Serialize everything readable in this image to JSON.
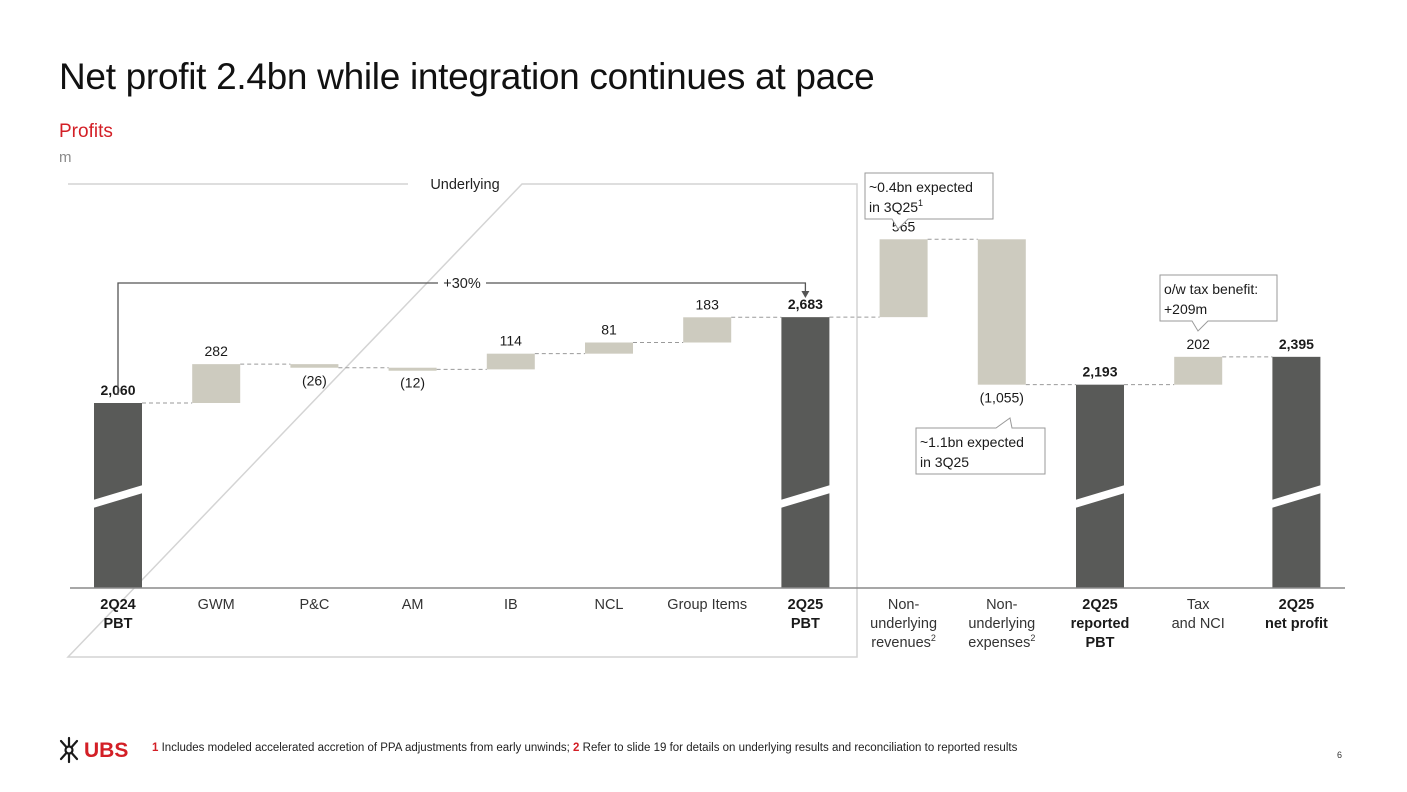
{
  "slide": {
    "title": "Net profit 2.4bn while integration continues at pace",
    "section": "Profits",
    "unit": "m",
    "page_number": "6"
  },
  "footnotes": {
    "n1": "1",
    "t1": " Includes modeled accelerated accretion of PPA adjustments from early unwinds; ",
    "n2": "2",
    "t2": " Refer to slide 19 for details on underlying results and reconciliation to reported results"
  },
  "logo": {
    "text": "UBS"
  },
  "colors": {
    "total": "#595a58",
    "delta": "#cdcbbf",
    "accent": "#d31f26",
    "connector": "#9a9a9a",
    "axis": "#8a8a8a"
  },
  "chart_data": {
    "type": "bar",
    "subtype": "waterfall",
    "title": "Profits",
    "ylabel": "m",
    "ylim": [
      0,
      3100
    ],
    "axis_break": true,
    "underlying_box_label": "Underlying",
    "growth_annotation": {
      "label": "+30%",
      "from": "2Q24 PBT",
      "to": "2Q25 PBT"
    },
    "bars": [
      {
        "category": [
          "2Q24",
          "PBT"
        ],
        "kind": "total",
        "value": 2060,
        "label": "2,060",
        "bold": true
      },
      {
        "category": [
          "GWM"
        ],
        "kind": "delta",
        "value": 282,
        "label": "282"
      },
      {
        "category": [
          "P&C"
        ],
        "kind": "delta",
        "value": -26,
        "label": "(26)"
      },
      {
        "category": [
          "AM"
        ],
        "kind": "delta",
        "value": -12,
        "label": "(12)"
      },
      {
        "category": [
          "IB"
        ],
        "kind": "delta",
        "value": 114,
        "label": "114"
      },
      {
        "category": [
          "NCL"
        ],
        "kind": "delta",
        "value": 81,
        "label": "81"
      },
      {
        "category": [
          "Group Items"
        ],
        "kind": "delta",
        "value": 183,
        "label": "183"
      },
      {
        "category": [
          "2Q25",
          "PBT"
        ],
        "kind": "total",
        "value": 2683,
        "label": "2,683",
        "bold": true
      },
      {
        "category": [
          "Non-",
          "underlying",
          "revenues"
        ],
        "sup": "2",
        "kind": "delta",
        "value": 565,
        "label": "565"
      },
      {
        "category": [
          "Non-",
          "underlying",
          "expenses"
        ],
        "sup": "2",
        "kind": "delta",
        "value": -1055,
        "label": "(1,055)"
      },
      {
        "category": [
          "2Q25",
          "reported",
          "PBT"
        ],
        "kind": "total",
        "value": 2193,
        "label": "2,193",
        "bold": true
      },
      {
        "category": [
          "Tax",
          "and NCI"
        ],
        "kind": "delta",
        "value": 202,
        "label": "202"
      },
      {
        "category": [
          "2Q25",
          "net profit"
        ],
        "kind": "total",
        "value": 2395,
        "label": "2,395",
        "bold": true
      }
    ],
    "callouts": [
      {
        "lines": [
          "~0.4bn expected",
          "in 3Q25"
        ],
        "sup": "1",
        "bar": "Non-underlying revenues"
      },
      {
        "lines": [
          "~1.1bn expected",
          "in 3Q25"
        ],
        "bar": "Non-underlying expenses"
      },
      {
        "lines": [
          "o/w tax benefit:",
          "+209m"
        ],
        "bar": "Tax and NCI"
      }
    ]
  }
}
